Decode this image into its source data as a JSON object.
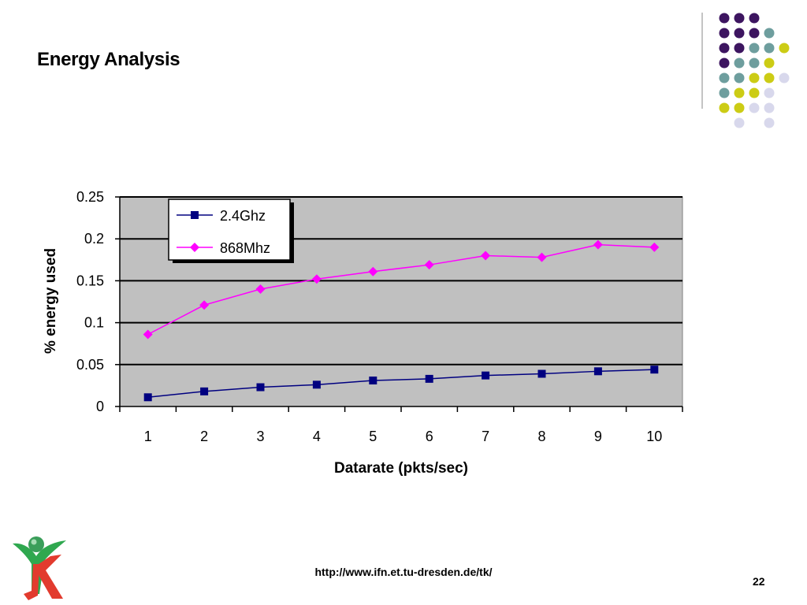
{
  "slide": {
    "title": "Energy Analysis",
    "footer_url": "http://www.ifn.et.tu-dresden.de/tk/",
    "page_number": "22"
  },
  "colors": {
    "plot_bg": "#c0c0c0",
    "series_24": "#000080",
    "series_868": "#ff00ff",
    "dot_purple": "#3d1560",
    "dot_teal": "#6e9e9e",
    "dot_yellow": "#cccc15",
    "dot_lilac": "#d8d8ec"
  },
  "decoration": {
    "dot_grid": [
      [
        "purple",
        "purple",
        "purple",
        ""
      ],
      [
        "purple",
        "purple",
        "purple",
        "teal"
      ],
      [
        "purple",
        "purple",
        "teal",
        "teal",
        "yellow"
      ],
      [
        "purple",
        "teal",
        "teal",
        "yellow"
      ],
      [
        "teal",
        "teal",
        "yellow",
        "yellow",
        "lilac"
      ],
      [
        "teal",
        "yellow",
        "yellow",
        "lilac"
      ],
      [
        "yellow",
        "yellow",
        "lilac",
        "lilac"
      ],
      [
        "",
        "lilac",
        "",
        "lilac"
      ]
    ]
  },
  "chart_data": {
    "type": "line",
    "title": "",
    "xlabel": "Datarate (pkts/sec)",
    "ylabel": "% energy used",
    "categories": [
      "1",
      "2",
      "3",
      "4",
      "5",
      "6",
      "7",
      "8",
      "9",
      "10"
    ],
    "ylim": [
      0,
      0.25
    ],
    "yticks": [
      "0",
      "0.05",
      "0.1",
      "0.15",
      "0.2",
      "0.25"
    ],
    "grid": true,
    "legend_position": "top-left",
    "series": [
      {
        "name": "2.4Ghz",
        "marker": "square",
        "color": "#000080",
        "values": [
          0.011,
          0.018,
          0.023,
          0.026,
          0.031,
          0.033,
          0.037,
          0.039,
          0.042,
          0.044
        ]
      },
      {
        "name": "868Mhz",
        "marker": "diamond",
        "color": "#ff00ff",
        "values": [
          0.086,
          0.121,
          0.14,
          0.152,
          0.161,
          0.169,
          0.18,
          0.178,
          0.193,
          0.19
        ]
      }
    ]
  }
}
